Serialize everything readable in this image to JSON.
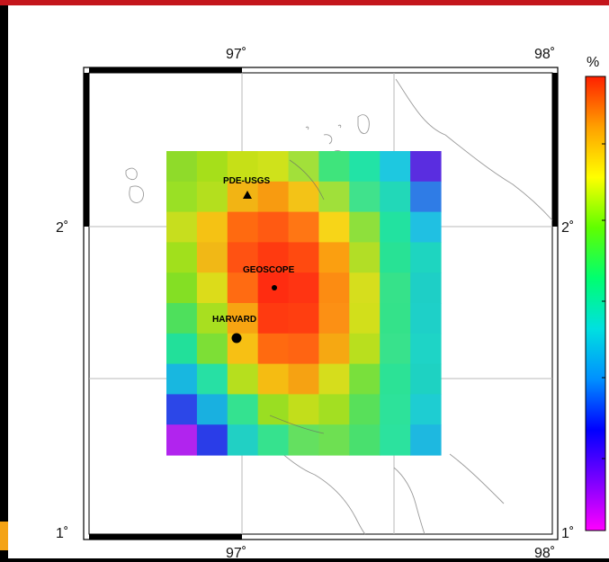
{
  "map": {
    "lon_ticks": [
      "97˚",
      "98˚"
    ],
    "lat_ticks": [
      "2˚",
      "1˚"
    ],
    "lon_range": [
      96.5,
      98.0
    ],
    "lat_range": [
      1.0,
      2.5
    ],
    "grid": true
  },
  "colorbar": {
    "unit": "%",
    "colormap": [
      "#ff00ff",
      "#7a00ff",
      "#0000ff",
      "#0090ff",
      "#00e0e0",
      "#00ff70",
      "#60ff00",
      "#ffff00",
      "#ffa000",
      "#ff2000"
    ]
  },
  "stations": [
    {
      "name": "PDE-USGS",
      "symbol": "triangle"
    },
    {
      "name": "GEOSCOPE",
      "symbol": "small-dot"
    },
    {
      "name": "HARVARD",
      "symbol": "large-dot"
    }
  ],
  "heatmap": {
    "rows": 10,
    "cols": 9,
    "colors": [
      [
        "#8fdb2a",
        "#a6df1a",
        "#c6e017",
        "#cfe21b",
        "#a2e03a",
        "#3fe47c",
        "#22e3a6",
        "#1ec8e0",
        "#5a2de0"
      ],
      [
        "#9ae025",
        "#b4df1e",
        "#f2b414",
        "#f89b10",
        "#f3c317",
        "#a0e03a",
        "#40e28c",
        "#22d8b8",
        "#2f7ce6"
      ],
      [
        "#c7de1e",
        "#f5c214",
        "#ff6a10",
        "#ff5a12",
        "#ff7614",
        "#f7d518",
        "#8ee03c",
        "#22e2a0",
        "#20c0e2"
      ],
      [
        "#a1e01c",
        "#f1b816",
        "#ff5212",
        "#ff3a10",
        "#ff4a10",
        "#fb9f10",
        "#b2de26",
        "#28e295",
        "#1ed5c0"
      ],
      [
        "#84df24",
        "#dcdc1a",
        "#ff6b12",
        "#ff2c10",
        "#ff3412",
        "#fc8c12",
        "#d6de1d",
        "#36e28a",
        "#1ecfc6"
      ],
      [
        "#4ee05c",
        "#a8df20",
        "#f7a412",
        "#ff3a10",
        "#ff3e10",
        "#fc9014",
        "#d2df1b",
        "#34e28a",
        "#1ed0c8"
      ],
      [
        "#22e09a",
        "#7ddf36",
        "#f7c014",
        "#ff6a10",
        "#ff6412",
        "#f6a812",
        "#b9df1e",
        "#38e28c",
        "#1ed4c6"
      ],
      [
        "#18b7e0",
        "#27e0a4",
        "#b6df1e",
        "#f5bc12",
        "#f6a212",
        "#d6dd1c",
        "#79e03c",
        "#2ce296",
        "#1ed2c2"
      ],
      [
        "#2c47e8",
        "#19b0e0",
        "#34e290",
        "#9ade22",
        "#c2de1b",
        "#a3df22",
        "#58e05a",
        "#2de29a",
        "#1ecdd2"
      ],
      [
        "#b124ee",
        "#2a3de8",
        "#21d0c4",
        "#36e28e",
        "#64e060",
        "#6ee052",
        "#49e06e",
        "#2ce29e",
        "#1eb8e0"
      ]
    ]
  }
}
